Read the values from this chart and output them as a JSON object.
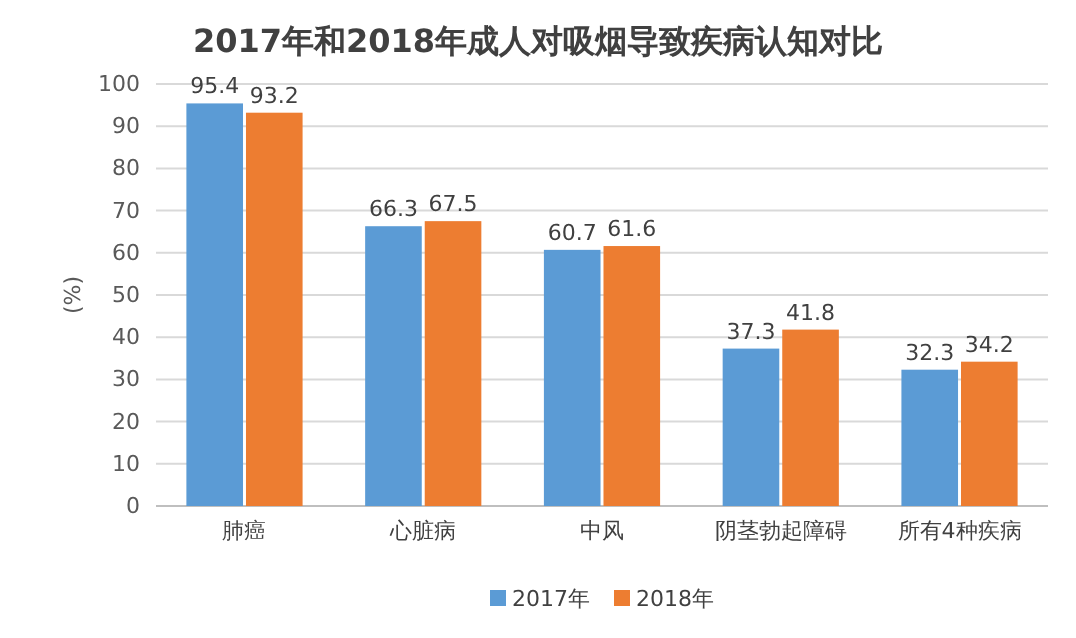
{
  "chart_data": {
    "type": "bar",
    "title": "2017年和2018年成人对吸烟导致疾病认知对比",
    "ylabel": "(%)",
    "categories": [
      "肺癌",
      "心脏病",
      "中风",
      "阴茎勃起障碍",
      "所有4种疾病"
    ],
    "series": [
      {
        "name": "2017年",
        "color": "#5b9bd5",
        "values": [
          95.4,
          66.3,
          60.7,
          37.3,
          32.3
        ]
      },
      {
        "name": "2018年",
        "color": "#ed7d31",
        "values": [
          93.2,
          67.5,
          61.6,
          41.8,
          34.2
        ]
      }
    ],
    "ylim": [
      0,
      100
    ],
    "yticks": [
      0,
      10,
      20,
      30,
      40,
      50,
      60,
      70,
      80,
      90,
      100
    ],
    "grid": "y",
    "legend": "bottom",
    "data_labels": true
  }
}
